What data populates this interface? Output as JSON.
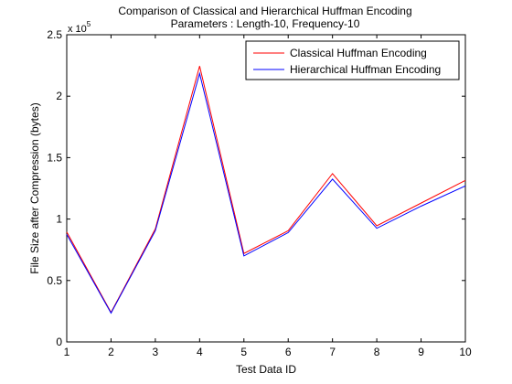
{
  "chart_data": {
    "type": "line",
    "title": "Comparison of Classical and Hierarchical Huffman Encoding",
    "subtitle": "Parameters : Length-10, Frequency-10",
    "xlabel": "Test Data ID",
    "ylabel": "File Size after Compression (bytes)",
    "y_exponent_label": "x 10",
    "y_exponent_power": "5",
    "xlim": [
      1,
      10
    ],
    "ylim": [
      0,
      2.5
    ],
    "x_ticks": [
      "1",
      "2",
      "3",
      "4",
      "5",
      "6",
      "7",
      "8",
      "9",
      "10"
    ],
    "y_ticks": [
      "0",
      "0.5",
      "1",
      "1.5",
      "2",
      "2.5"
    ],
    "grid": false,
    "legend_position": "top-right",
    "x": [
      1,
      2,
      3,
      4,
      5,
      6,
      7,
      8,
      9,
      10
    ],
    "series": [
      {
        "name": "Classical Huffman Encoding",
        "color": "#ff0000",
        "values": [
          0.895,
          0.24,
          0.92,
          2.245,
          0.72,
          0.905,
          1.37,
          0.945,
          1.13,
          1.315
        ]
      },
      {
        "name": "Hierarchical Huffman Encoding",
        "color": "#0000ff",
        "values": [
          0.875,
          0.235,
          0.905,
          2.185,
          0.7,
          0.89,
          1.325,
          0.925,
          1.105,
          1.27
        ]
      }
    ]
  }
}
